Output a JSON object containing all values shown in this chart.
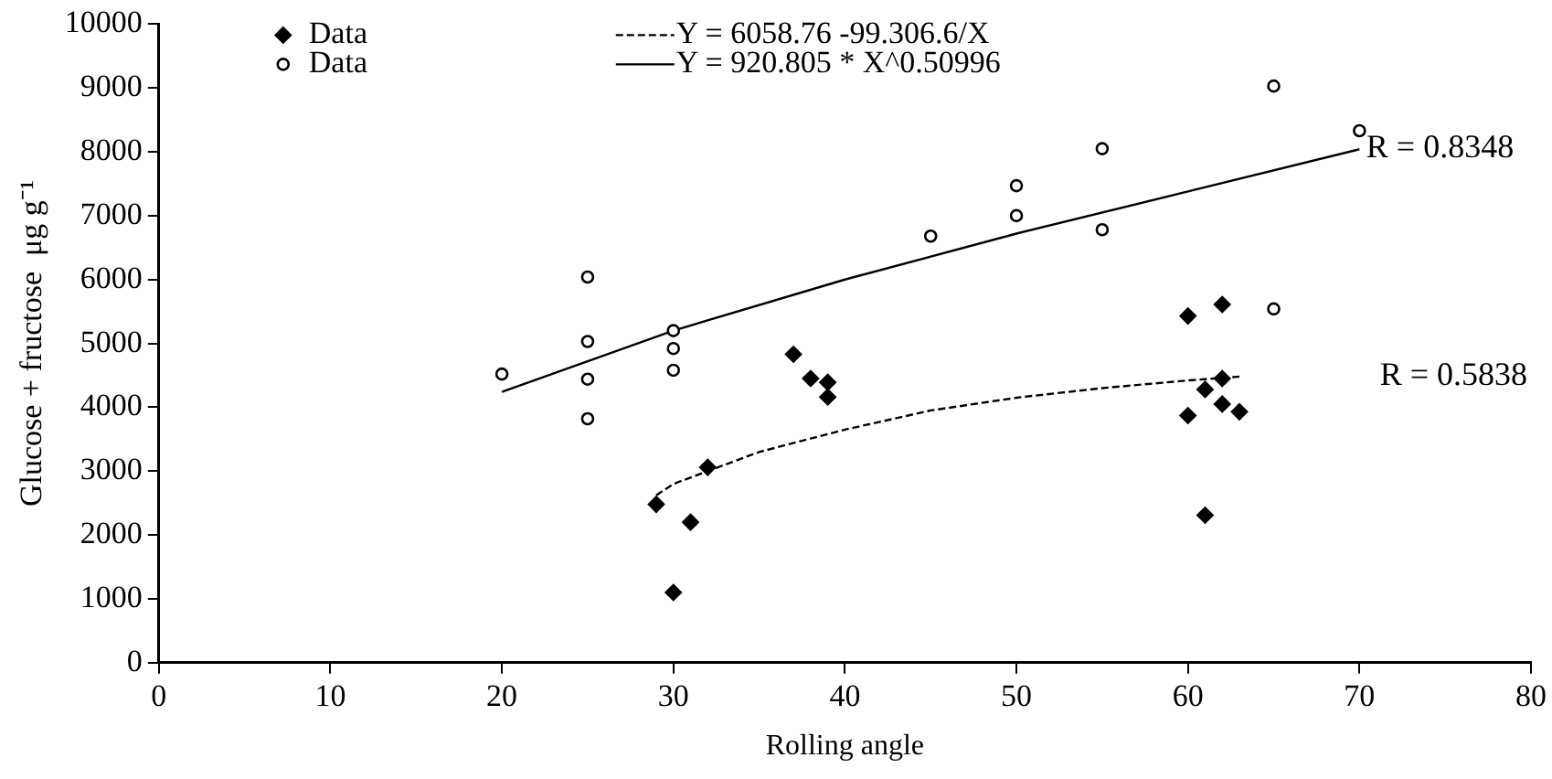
{
  "chart_data": {
    "type": "scatter",
    "xlabel": "Rolling angle",
    "ylabel": "Glucose + fructose  μg g⁻¹",
    "xlim": [
      0,
      80
    ],
    "xticks": [
      0,
      10,
      20,
      30,
      40,
      50,
      60,
      70,
      80
    ],
    "ylim": [
      0,
      10000
    ],
    "yticks": [
      0,
      1000,
      2000,
      3000,
      4000,
      5000,
      6000,
      7000,
      8000,
      9000,
      10000
    ],
    "grid": false,
    "legend": "top left",
    "series": [
      {
        "name": "Data",
        "marker": "diamond",
        "color": "#000000",
        "x": [
          29,
          30,
          31,
          32,
          37,
          38,
          39,
          39,
          60,
          60,
          61,
          61,
          62,
          62,
          62,
          63
        ],
        "values": [
          2480,
          1100,
          2200,
          3060,
          4830,
          4450,
          4390,
          4160,
          5430,
          3870,
          4280,
          2310,
          5610,
          4450,
          4050,
          3930
        ]
      },
      {
        "name": "Data",
        "marker": "circle",
        "color": "#000000",
        "x": [
          20,
          25,
          25,
          25,
          25,
          30,
          30,
          30,
          45,
          50,
          50,
          55,
          55,
          65,
          65,
          70
        ],
        "values": [
          4520,
          6040,
          5030,
          4440,
          3820,
          5200,
          4920,
          4580,
          6680,
          7470,
          7000,
          8050,
          6780,
          9030,
          5540,
          8330
        ]
      },
      {
        "name": "Y = 6058.76 -99.306.6/X",
        "type": "line",
        "marker": "none",
        "line_style": "dashed",
        "color": "#000000",
        "x": [
          29,
          30,
          35,
          40,
          45,
          50,
          55,
          60,
          63
        ],
        "values": [
          2620,
          2800,
          3300,
          3650,
          3950,
          4150,
          4300,
          4420,
          4480
        ]
      },
      {
        "name": "Y = 920.805 * X^0.50996",
        "type": "line",
        "marker": "none",
        "line_style": "solid",
        "color": "#000000",
        "x": [
          20,
          30,
          40,
          50,
          60,
          70
        ],
        "values": [
          4240,
          5200,
          6000,
          6720,
          7380,
          8040
        ]
      }
    ],
    "annotations": [
      {
        "text": "R = 0.8348",
        "x": 70.4,
        "y": 8050
      },
      "R = 0.5838"
    ]
  }
}
